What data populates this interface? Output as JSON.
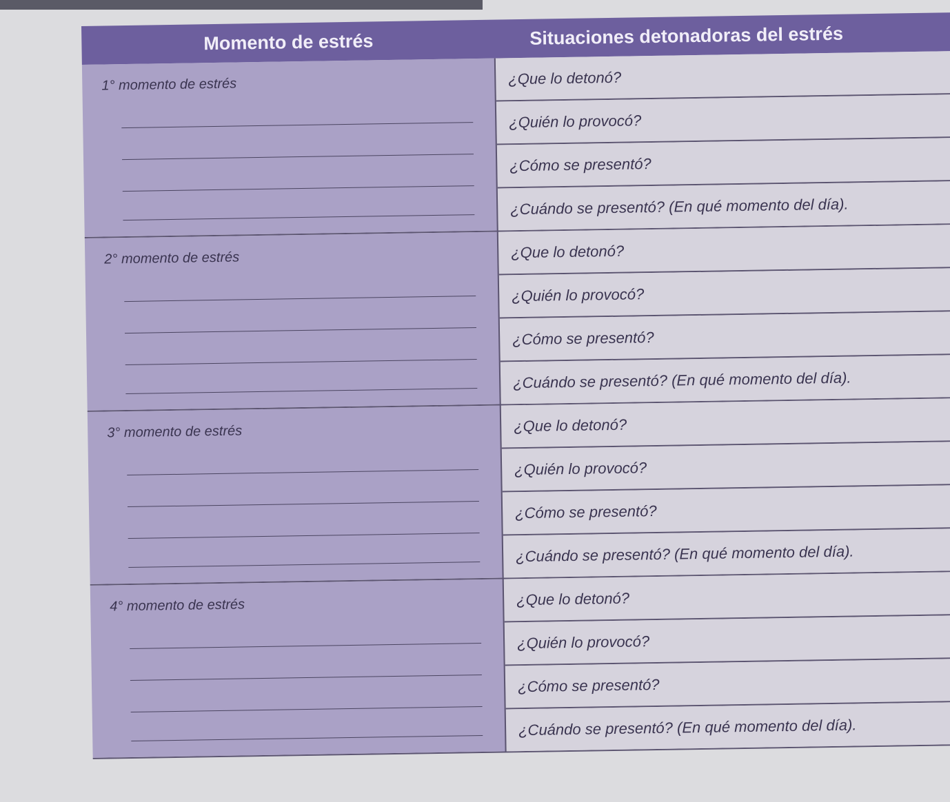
{
  "header": {
    "left": "Momento de estrés",
    "right": "Situaciones detonadoras del estrés"
  },
  "moments": [
    {
      "label": "1° momento de estrés"
    },
    {
      "label": "2° momento de estrés"
    },
    {
      "label": "3° momento de estrés"
    },
    {
      "label": "4° momento de estrés"
    }
  ],
  "questions": [
    "¿Que lo detonó?",
    "¿Quién lo provocó?",
    "¿Cómo se presentó?",
    "¿Cuándo se presentó? (En qué momento del día)."
  ],
  "colors": {
    "header": "#6d5f9e",
    "left_cell": "#aaa1c6",
    "right_cell": "#d6d3dd"
  }
}
